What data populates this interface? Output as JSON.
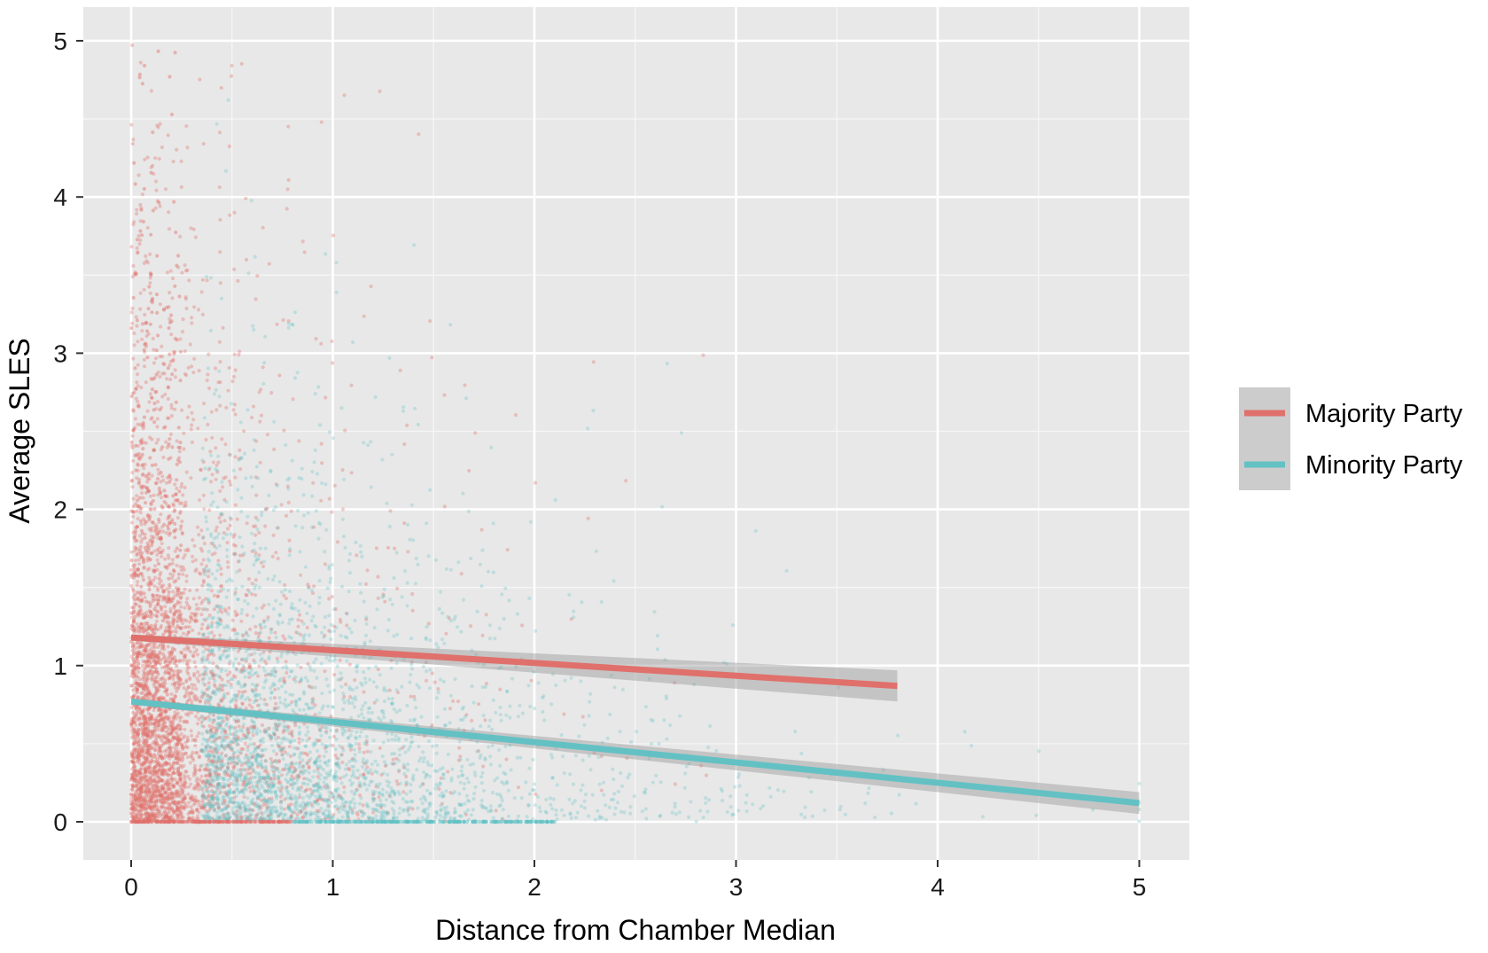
{
  "chart_data": {
    "type": "scatter",
    "title": "",
    "xlabel": "Distance from Chamber Median",
    "ylabel": "Average SLES",
    "xlim": [
      -0.25,
      5.25
    ],
    "ylim": [
      -0.25,
      5.1
    ],
    "x_ticks": [
      0,
      1,
      2,
      3,
      4,
      5
    ],
    "y_ticks": [
      0,
      1,
      2,
      3,
      4,
      5
    ],
    "x_tick_labels": [
      "0",
      "1",
      "2",
      "3",
      "4",
      "5"
    ],
    "y_tick_labels": [
      "0",
      "1",
      "2",
      "3",
      "4",
      "5"
    ],
    "grid": true,
    "panel_background": "#e8e8e8",
    "legend_position": "right",
    "series": [
      {
        "name": "Majority Party",
        "color": "#e0706b",
        "point_x_range": [
          0,
          3.8
        ],
        "fit_line": {
          "x": [
            0,
            3.8
          ],
          "y": [
            1.18,
            0.87
          ]
        },
        "ci_band_at_end": 0.1
      },
      {
        "name": "Minority Party",
        "color": "#63c1c4",
        "point_x_range": [
          0,
          5
        ],
        "fit_line": {
          "x": [
            0,
            5
          ],
          "y": [
            0.77,
            0.12
          ]
        },
        "ci_band_at_end": 0.07
      }
    ]
  }
}
